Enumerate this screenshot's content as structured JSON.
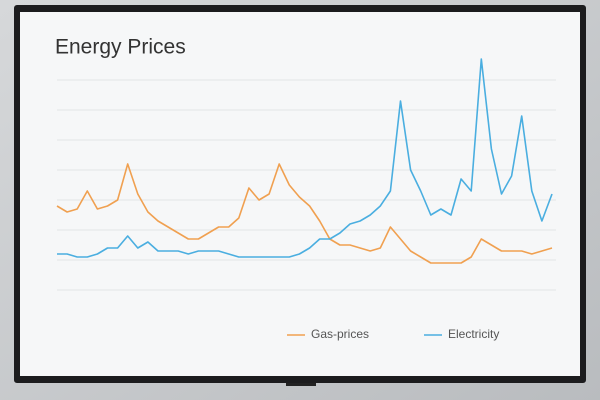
{
  "chart_data": {
    "type": "line",
    "title": "Energy Prices",
    "ylim": [
      0,
      8
    ],
    "yticks": [
      0,
      1,
      2,
      3,
      4,
      5,
      6,
      7
    ],
    "grid": true,
    "legend": "bottom",
    "series": [
      {
        "name": "Gas-prices",
        "color": "#f0a050",
        "values": [
          2.8,
          2.6,
          2.7,
          3.3,
          2.7,
          2.8,
          3.0,
          4.2,
          3.2,
          2.6,
          2.3,
          2.1,
          1.9,
          1.7,
          1.7,
          1.9,
          2.1,
          2.1,
          2.4,
          3.4,
          3.0,
          3.2,
          4.2,
          3.5,
          3.1,
          2.8,
          2.3,
          1.7,
          1.5,
          1.5,
          1.4,
          1.3,
          1.4,
          2.1,
          1.7,
          1.3,
          1.1,
          0.9,
          0.9,
          0.9,
          0.9,
          1.1,
          1.7,
          1.5,
          1.3,
          1.3,
          1.3,
          1.2,
          1.3,
          1.4
        ]
      },
      {
        "name": "Electricity",
        "color": "#4aaee0",
        "values": [
          1.2,
          1.2,
          1.1,
          1.1,
          1.2,
          1.4,
          1.4,
          1.8,
          1.4,
          1.6,
          1.3,
          1.3,
          1.3,
          1.2,
          1.3,
          1.3,
          1.3,
          1.2,
          1.1,
          1.1,
          1.1,
          1.1,
          1.1,
          1.1,
          1.2,
          1.4,
          1.7,
          1.7,
          1.9,
          2.2,
          2.3,
          2.5,
          2.8,
          3.3,
          6.3,
          4.0,
          3.3,
          2.5,
          2.7,
          2.5,
          3.7,
          3.3,
          7.7,
          4.7,
          3.2,
          3.8,
          5.8,
          3.3,
          2.3,
          3.2
        ]
      }
    ]
  }
}
